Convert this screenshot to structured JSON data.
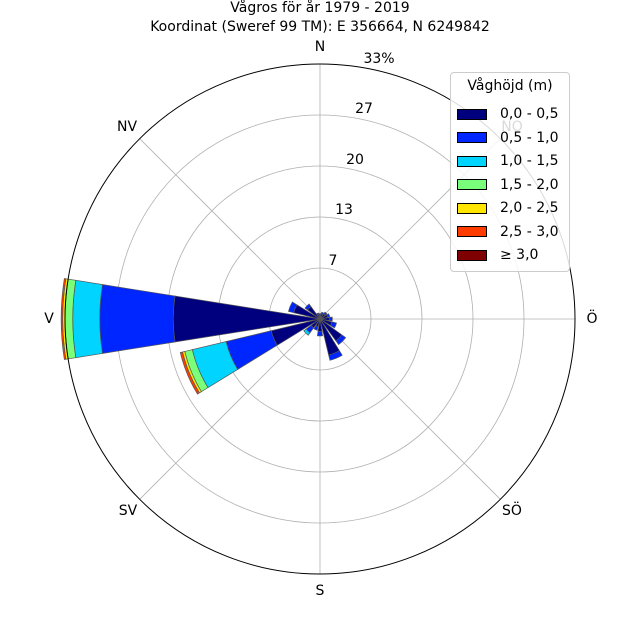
{
  "chart_data": {
    "type": "windrose",
    "title": "Vågros för år 1979 - 2019",
    "subtitle": "Koordinat (Sweref 99 TM): E 356664, N 6249842",
    "directions": [
      "N",
      "NO",
      "Ö",
      "SÖ",
      "S",
      "SV",
      "V",
      "NV"
    ],
    "radial_ticks": [
      "7",
      "13",
      "20",
      "27",
      "33%"
    ],
    "rmax": 33,
    "legend_title": "Våghöjd (m)",
    "bins": [
      "0,0 - 0,5",
      "0,5 - 1,0",
      "1,0 - 1,5",
      "1,5 - 2,0",
      "2,0 - 2,5",
      "2,5 - 3,0",
      "≥ 3,0"
    ],
    "colors": [
      "#00007f",
      "#0026ff",
      "#00d4ff",
      "#7aff7a",
      "#ffe500",
      "#ff3c00",
      "#7f0000"
    ],
    "sectors": [
      {
        "angle": 0,
        "values": [
          0.5,
          0.2,
          0,
          0,
          0,
          0,
          0
        ]
      },
      {
        "angle": 22.5,
        "values": [
          0.7,
          0.2,
          0,
          0,
          0,
          0,
          0
        ]
      },
      {
        "angle": 45,
        "values": [
          0.8,
          0.3,
          0,
          0,
          0,
          0,
          0
        ]
      },
      {
        "angle": 67.5,
        "values": [
          1.0,
          0.3,
          0,
          0,
          0,
          0,
          0
        ]
      },
      {
        "angle": 90,
        "values": [
          1.2,
          0.4,
          0,
          0,
          0,
          0,
          0
        ]
      },
      {
        "angle": 112.5,
        "values": [
          1.6,
          0.6,
          0,
          0,
          0,
          0,
          0
        ]
      },
      {
        "angle": 135,
        "values": [
          3.5,
          0.6,
          0,
          0,
          0,
          0,
          0
        ]
      },
      {
        "angle": 157.5,
        "values": [
          4.8,
          0.7,
          0,
          0,
          0,
          0,
          0
        ]
      },
      {
        "angle": 180,
        "values": [
          1.6,
          0.6,
          0,
          0,
          0,
          0,
          0
        ]
      },
      {
        "angle": 202.5,
        "values": [
          1.0,
          0.5,
          0,
          0,
          0,
          0,
          0
        ]
      },
      {
        "angle": 225,
        "values": [
          1.4,
          0.8,
          0.4,
          0,
          0,
          0,
          0
        ]
      },
      {
        "angle": 247.5,
        "values": [
          6.5,
          6.0,
          4.5,
          1.0,
          0.3,
          0.3,
          0
        ]
      },
      {
        "angle": 270,
        "values": [
          19.0,
          9.5,
          3.5,
          1.0,
          0.3,
          0.2,
          0
        ]
      },
      {
        "angle": 292.5,
        "values": [
          3.5,
          0.7,
          0,
          0,
          0,
          0,
          0
        ]
      },
      {
        "angle": 315,
        "values": [
          2.0,
          0.4,
          0,
          0,
          0,
          0,
          0
        ]
      },
      {
        "angle": 337.5,
        "values": [
          0.6,
          0.2,
          0,
          0,
          0,
          0,
          0
        ]
      }
    ]
  }
}
